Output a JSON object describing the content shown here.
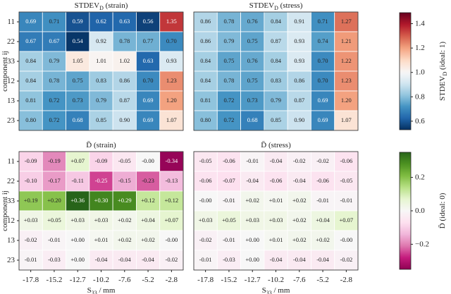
{
  "chart_data": [
    {
      "type": "heatmap",
      "title": "STDEV_D (strain)",
      "rows": [
        "11",
        "22",
        "33",
        "12",
        "13",
        "23"
      ],
      "ylabel": "component ij",
      "colormap": [
        "#053061",
        "#2166ac",
        "#4393c3",
        "#92c5de",
        "#d1e5f0",
        "#f7f7f7",
        "#fddbc7",
        "#f4a582",
        "#d6604d",
        "#b2182b",
        "#67001f"
      ],
      "clim": [
        0.53,
        1.49
      ],
      "ccenter": 1,
      "values": [
        [
          0.69,
          0.71,
          0.59,
          0.62,
          0.63,
          0.56,
          1.35
        ],
        [
          0.67,
          0.67,
          0.54,
          0.92,
          0.78,
          0.77,
          0.7
        ],
        [
          0.84,
          0.79,
          1.05,
          1.01,
          1.02,
          0.63,
          0.93
        ],
        [
          0.84,
          0.78,
          0.75,
          0.83,
          0.86,
          0.7,
          1.23
        ],
        [
          0.81,
          0.72,
          0.73,
          0.79,
          0.87,
          0.69,
          1.2
        ],
        [
          0.8,
          0.72,
          0.68,
          0.85,
          0.9,
          0.69,
          1.07
        ]
      ],
      "value_labels": [
        [
          "0.69",
          "0.71",
          "0.59",
          "0.62",
          "0.63",
          "0.56",
          "1.35"
        ],
        [
          "0.67",
          "0.67",
          "0.54",
          "0.92",
          "0.78",
          "0.77",
          "0.70"
        ],
        [
          "0.84",
          "0.79",
          "1.05",
          "1.01",
          "1.02",
          "0.63",
          "0.93"
        ],
        [
          "0.84",
          "0.78",
          "0.75",
          "0.83",
          "0.86",
          "0.70",
          "1.23"
        ],
        [
          "0.81",
          "0.72",
          "0.73",
          "0.79",
          "0.87",
          "0.69",
          "1.20"
        ],
        [
          "0.80",
          "0.72",
          "0.68",
          "0.85",
          "0.90",
          "0.69",
          "1.07"
        ]
      ]
    },
    {
      "type": "heatmap",
      "title": "STDEV_D (stress)",
      "colormap": [
        "#053061",
        "#2166ac",
        "#4393c3",
        "#92c5de",
        "#d1e5f0",
        "#f7f7f7",
        "#fddbc7",
        "#f4a582",
        "#d6604d",
        "#b2182b",
        "#67001f"
      ],
      "clim": [
        0.53,
        1.49
      ],
      "ccenter": 1,
      "colorbar_label": "STDEV_D (ideal: 1)",
      "colorbar_ticks": [
        0.6,
        0.8,
        {
          "value": 1,
          "label": "1.0"
        },
        1.2,
        1.4
      ],
      "values": [
        [
          0.86,
          0.78,
          0.76,
          0.84,
          0.91,
          0.71,
          1.27
        ],
        [
          0.86,
          0.79,
          0.75,
          0.87,
          0.93,
          0.74,
          1.21
        ],
        [
          0.84,
          0.75,
          0.76,
          0.84,
          0.93,
          0.7,
          1.22
        ],
        [
          0.84,
          0.78,
          0.75,
          0.83,
          0.86,
          0.7,
          1.23
        ],
        [
          0.81,
          0.72,
          0.73,
          0.79,
          0.87,
          0.69,
          1.2
        ],
        [
          0.8,
          0.72,
          0.68,
          0.85,
          0.9,
          0.69,
          1.07
        ]
      ],
      "value_labels": [
        [
          "0.86",
          "0.78",
          "0.76",
          "0.84",
          "0.91",
          "0.71",
          "1.27"
        ],
        [
          "0.86",
          "0.79",
          "0.75",
          "0.87",
          "0.93",
          "0.74",
          "1.21"
        ],
        [
          "0.84",
          "0.75",
          "0.76",
          "0.84",
          "0.93",
          "0.70",
          "1.22"
        ],
        [
          "0.84",
          "0.78",
          "0.75",
          "0.83",
          "0.86",
          "0.70",
          "1.23"
        ],
        [
          "0.81",
          "0.72",
          "0.73",
          "0.79",
          "0.87",
          "0.69",
          "1.20"
        ],
        [
          "0.80",
          "0.72",
          "0.68",
          "0.85",
          "0.90",
          "0.69",
          "1.07"
        ]
      ]
    },
    {
      "type": "heatmap",
      "title": "D̄ (strain)",
      "rows": [
        "11",
        "22",
        "33",
        "12",
        "13",
        "23"
      ],
      "ylabel": "component ij",
      "categories": [
        "-17.8",
        "-15.2",
        "-12.7",
        "-10.2",
        "-7.6",
        "-5.2",
        "-2.8"
      ],
      "xlabel": "S_33 / mm",
      "colormap": [
        "#8e0152",
        "#c51b7d",
        "#de77ae",
        "#f1b6da",
        "#fde0ef",
        "#f7f7f7",
        "#e6f5d0",
        "#b8e186",
        "#7fbc41",
        "#4d9221",
        "#276419"
      ],
      "clim": [
        -0.35,
        0.35
      ],
      "ccenter": 0,
      "values": [
        [
          -0.09,
          -0.19,
          0.07,
          -0.09,
          -0.05,
          0,
          -0.34
        ],
        [
          -0.1,
          -0.17,
          -0.11,
          -0.25,
          -0.15,
          -0.23,
          -0.13
        ],
        [
          0.19,
          0.2,
          0.36,
          0.3,
          0.29,
          0.12,
          0.12
        ],
        [
          0.03,
          0.05,
          0.03,
          0.03,
          0.02,
          0.04,
          0.07
        ],
        [
          -0.02,
          -0.01,
          0,
          0.01,
          0.02,
          0.02,
          0
        ],
        [
          -0.01,
          -0.03,
          0,
          -0.04,
          -0.04,
          -0.04,
          -0.02
        ]
      ],
      "value_labels": [
        [
          "-0.09",
          "-0.19",
          "+0.07",
          "-0.09",
          "-0.05",
          "-0.00",
          "-0.34"
        ],
        [
          "-0.10",
          "-0.17",
          "-0.11",
          "-0.25",
          "-0.15",
          "-0.23",
          "-0.13"
        ],
        [
          "+0.19",
          "+0.20",
          "+0.36",
          "+0.30",
          "+0.29",
          "+0.12",
          "+0.12"
        ],
        [
          "+0.03",
          "+0.05",
          "+0.03",
          "+0.03",
          "+0.02",
          "+0.04",
          "+0.07"
        ],
        [
          "-0.02",
          "-0.01",
          "+0.00",
          "+0.01",
          "+0.02",
          "+0.02",
          "-0.00"
        ],
        [
          "-0.01",
          "-0.03",
          "+0.00",
          "-0.04",
          "-0.04",
          "-0.04",
          "-0.02"
        ]
      ]
    },
    {
      "type": "heatmap",
      "title": "D̄ (stress)",
      "categories": [
        "-17.8",
        "-15.2",
        "-12.7",
        "-10.2",
        "-7.6",
        "-5.2",
        "-2.8"
      ],
      "xlabel": "S_33 / mm",
      "colormap": [
        "#8e0152",
        "#c51b7d",
        "#de77ae",
        "#f1b6da",
        "#fde0ef",
        "#f7f7f7",
        "#e6f5d0",
        "#b8e186",
        "#7fbc41",
        "#4d9221",
        "#276419"
      ],
      "clim": [
        -0.35,
        0.35
      ],
      "ccenter": 0,
      "colorbar_label": "D̄ (ideal: 0)",
      "colorbar_ticks": [
        {
          "value": -0.2,
          "label": "−0.2"
        },
        {
          "value": 0,
          "label": "0.0"
        },
        0.2
      ],
      "values": [
        [
          -0.05,
          -0.06,
          -0.01,
          -0.04,
          -0.02,
          -0.02,
          -0.06
        ],
        [
          -0.06,
          -0.07,
          -0.04,
          -0.06,
          -0.04,
          -0.06,
          -0.05
        ],
        [
          0,
          -0.01,
          0.02,
          0.01,
          0.02,
          -0.01,
          -0.01
        ],
        [
          0.03,
          0.05,
          0.03,
          0.03,
          0.02,
          0.04,
          0.07
        ],
        [
          -0.02,
          -0.01,
          0,
          0.01,
          0.02,
          0.02,
          0
        ],
        [
          -0.01,
          -0.03,
          0,
          -0.04,
          -0.04,
          -0.04,
          -0.02
        ]
      ],
      "value_labels": [
        [
          "-0.05",
          "-0.06",
          "-0.01",
          "-0.04",
          "-0.02",
          "-0.02",
          "-0.06"
        ],
        [
          "-0.06",
          "-0.07",
          "-0.04",
          "-0.06",
          "-0.04",
          "-0.06",
          "-0.05"
        ],
        [
          "-0.00",
          "-0.01",
          "+0.02",
          "+0.01",
          "+0.02",
          "-0.01",
          "-0.01"
        ],
        [
          "+0.03",
          "+0.05",
          "+0.03",
          "+0.03",
          "+0.02",
          "+0.04",
          "+0.07"
        ],
        [
          "-0.02",
          "-0.01",
          "+0.00",
          "+0.01",
          "+0.02",
          "+0.02",
          "-0.00"
        ],
        [
          "-0.01",
          "-0.03",
          "+0.00",
          "-0.04",
          "-0.04",
          "-0.04",
          "-0.02"
        ]
      ]
    }
  ]
}
